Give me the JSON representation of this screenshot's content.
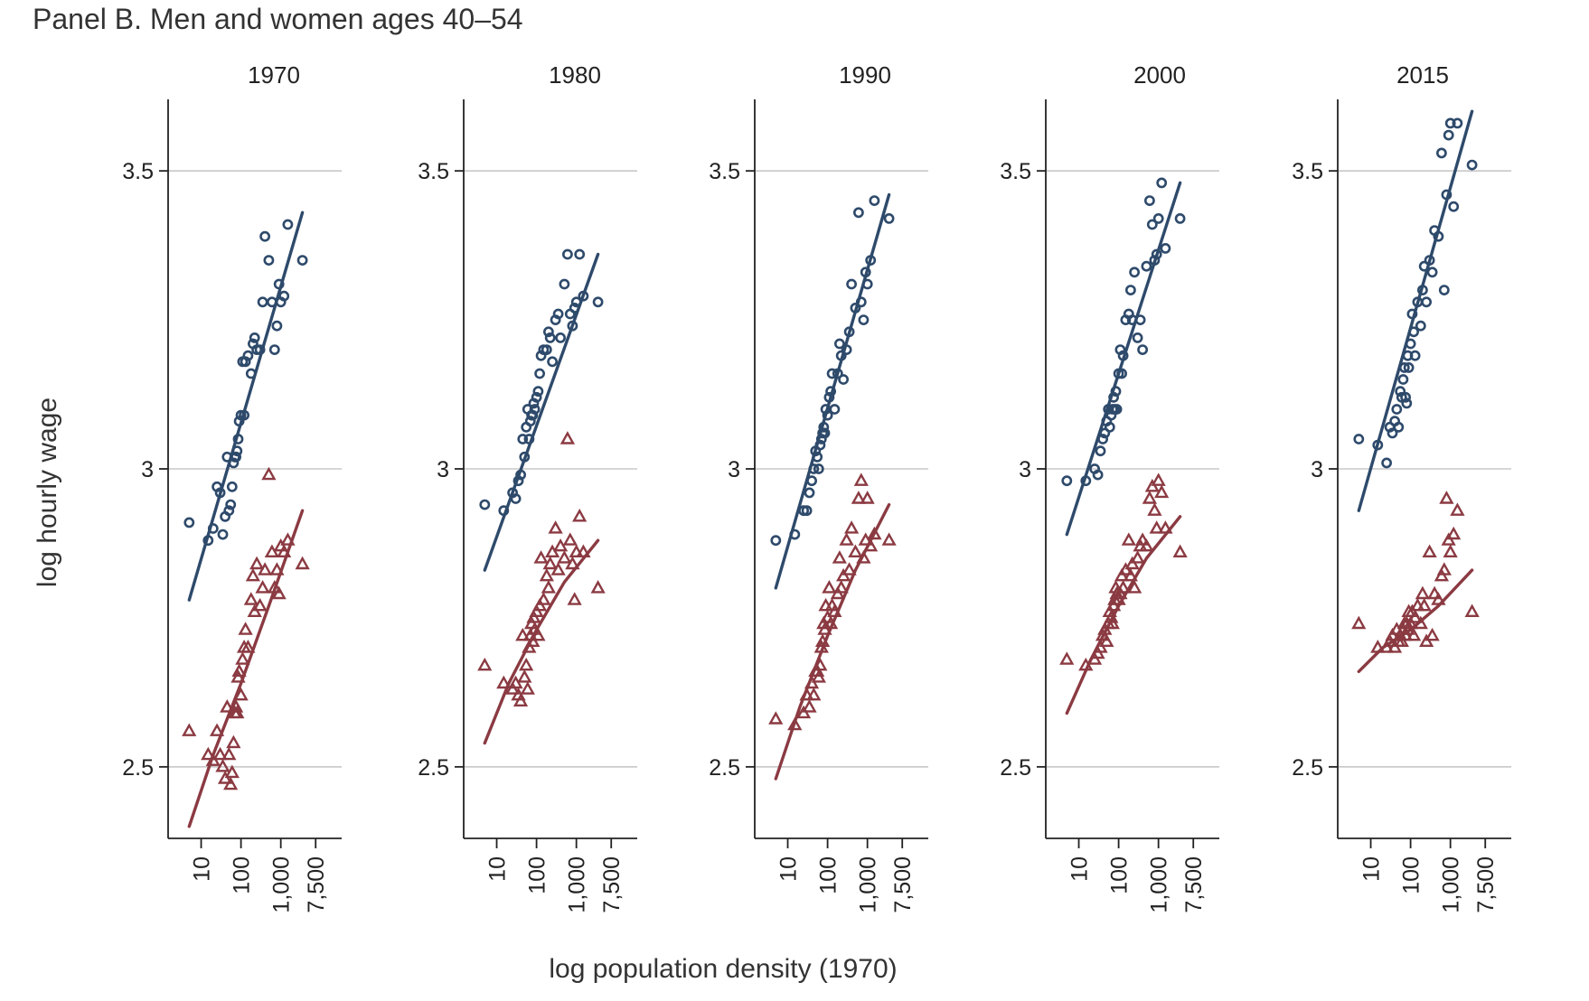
{
  "figure": {
    "panel_title": "Panel B. Men and women ages 40–54",
    "colors": {
      "series_circle": "#2e4a6b",
      "series_triangle": "#8b3a42",
      "grid": "#c8c8c8",
      "axis": "#222222"
    }
  },
  "chart_data": {
    "type": "scatter",
    "title": "Panel B. Men and women ages 40–54",
    "xlabel": "log population density (1970)",
    "ylabel": "log hourly wage",
    "x_scale": "log",
    "x_ticks": [
      10,
      100,
      1000,
      7500
    ],
    "x_tick_labels": [
      "10",
      "100",
      "1,000",
      "7,500"
    ],
    "xlim": [
      2.5,
      20000
    ],
    "y_ticks": [
      2.5,
      3,
      3.5
    ],
    "y_tick_labels": [
      "2.5",
      "3",
      "3.5"
    ],
    "ylim": [
      2.38,
      3.62
    ],
    "grid": "horizontal",
    "legend": "none",
    "facets": [
      {
        "title": "1970",
        "series": [
          {
            "marker": "circle",
            "color": "#2e4a6b",
            "x": [
              5,
              15,
              20,
              25,
              30,
              35,
              40,
              45,
              50,
              55,
              60,
              65,
              70,
              75,
              80,
              85,
              90,
              100,
              110,
              120,
              130,
              150,
              180,
              200,
              220,
              250,
              300,
              350,
              400,
              500,
              600,
              700,
              800,
              900,
              1000,
              1200,
              1500,
              3500
            ],
            "y": [
              2.91,
              2.88,
              2.9,
              2.97,
              2.96,
              2.89,
              2.92,
              3.02,
              2.93,
              2.94,
              2.97,
              3.01,
              3.02,
              3.02,
              3.03,
              3.05,
              3.08,
              3.09,
              3.18,
              3.09,
              3.18,
              3.19,
              3.16,
              3.21,
              3.22,
              3.2,
              3.2,
              3.28,
              3.39,
              3.35,
              3.28,
              3.2,
              3.24,
              3.31,
              3.28,
              3.29,
              3.41,
              3.35
            ]
          },
          {
            "marker": "triangle",
            "color": "#8b3a42",
            "x": [
              5,
              15,
              20,
              25,
              30,
              35,
              40,
              45,
              50,
              55,
              60,
              65,
              70,
              75,
              80,
              85,
              90,
              100,
              110,
              120,
              130,
              150,
              180,
              200,
              220,
              250,
              300,
              350,
              400,
              500,
              600,
              700,
              800,
              900,
              1000,
              1200,
              1500,
              3500
            ],
            "y": [
              2.56,
              2.52,
              2.51,
              2.56,
              2.52,
              2.5,
              2.48,
              2.6,
              2.52,
              2.47,
              2.49,
              2.54,
              2.59,
              2.6,
              2.59,
              2.65,
              2.66,
              2.62,
              2.68,
              2.7,
              2.73,
              2.7,
              2.78,
              2.82,
              2.76,
              2.84,
              2.77,
              2.8,
              2.83,
              2.99,
              2.86,
              2.8,
              2.83,
              2.79,
              2.87,
              2.86,
              2.88,
              2.84
            ]
          }
        ],
        "fit_lines": [
          {
            "color": "#2e4a6b",
            "x": [
              5,
              3500
            ],
            "y": [
              2.78,
              3.43
            ]
          },
          {
            "color": "#8b3a42",
            "x": [
              5,
              20,
              100,
              500,
              3500
            ],
            "y": [
              2.4,
              2.52,
              2.64,
              2.77,
              2.93
            ]
          }
        ]
      },
      {
        "title": "1980",
        "series": [
          {
            "marker": "circle",
            "color": "#2e4a6b",
            "x": [
              5,
              15,
              25,
              30,
              35,
              40,
              45,
              50,
              55,
              60,
              65,
              70,
              75,
              80,
              85,
              90,
              100,
              110,
              120,
              130,
              150,
              180,
              200,
              220,
              250,
              300,
              350,
              400,
              500,
              600,
              700,
              800,
              900,
              1000,
              1200,
              1500,
              3500
            ],
            "y": [
              2.94,
              2.93,
              2.96,
              2.95,
              2.98,
              2.99,
              3.05,
              3.02,
              3.07,
              3.1,
              3.05,
              3.08,
              3.09,
              3.09,
              3.11,
              3.1,
              3.12,
              3.13,
              3.16,
              3.19,
              3.2,
              3.2,
              3.23,
              3.22,
              3.18,
              3.25,
              3.26,
              3.22,
              3.31,
              3.36,
              3.26,
              3.24,
              3.27,
              3.28,
              3.36,
              3.29,
              3.28
            ]
          },
          {
            "marker": "triangle",
            "color": "#8b3a42",
            "x": [
              5,
              15,
              25,
              30,
              35,
              40,
              45,
              50,
              55,
              60,
              65,
              70,
              75,
              80,
              85,
              90,
              100,
              110,
              120,
              130,
              150,
              180,
              200,
              220,
              250,
              300,
              350,
              400,
              500,
              600,
              700,
              800,
              900,
              1000,
              1200,
              1500,
              3500
            ],
            "y": [
              2.67,
              2.64,
              2.63,
              2.64,
              2.62,
              2.61,
              2.72,
              2.65,
              2.67,
              2.63,
              2.7,
              2.72,
              2.74,
              2.71,
              2.75,
              2.73,
              2.76,
              2.72,
              2.77,
              2.85,
              2.78,
              2.82,
              2.8,
              2.84,
              2.86,
              2.9,
              2.83,
              2.87,
              2.85,
              3.05,
              2.88,
              2.84,
              2.78,
              2.86,
              2.92,
              2.86,
              2.8
            ]
          }
        ],
        "fit_lines": [
          {
            "color": "#2e4a6b",
            "x": [
              5,
              3500
            ],
            "y": [
              2.83,
              3.36
            ]
          },
          {
            "color": "#8b3a42",
            "x": [
              5,
              20,
              100,
              500,
              3500
            ],
            "y": [
              2.54,
              2.64,
              2.73,
              2.81,
              2.88
            ]
          }
        ]
      },
      {
        "title": "1990",
        "series": [
          {
            "marker": "circle",
            "color": "#2e4a6b",
            "x": [
              5,
              15,
              25,
              30,
              35,
              40,
              45,
              50,
              55,
              60,
              65,
              70,
              75,
              80,
              85,
              90,
              100,
              110,
              120,
              130,
              150,
              180,
              200,
              220,
              250,
              300,
              350,
              400,
              500,
              600,
              700,
              800,
              900,
              1000,
              1200,
              1500,
              3500
            ],
            "y": [
              2.88,
              2.89,
              2.93,
              2.93,
              2.96,
              2.98,
              3.0,
              3.03,
              3.02,
              3.0,
              3.04,
              3.05,
              3.06,
              3.07,
              3.06,
              3.1,
              3.09,
              3.12,
              3.13,
              3.16,
              3.1,
              3.16,
              3.21,
              3.19,
              3.15,
              3.2,
              3.23,
              3.31,
              3.27,
              3.43,
              3.28,
              3.25,
              3.33,
              3.31,
              3.35,
              3.45,
              3.42
            ]
          },
          {
            "marker": "triangle",
            "color": "#8b3a42",
            "x": [
              5,
              15,
              25,
              30,
              35,
              40,
              45,
              50,
              55,
              60,
              65,
              70,
              75,
              80,
              85,
              90,
              100,
              110,
              120,
              130,
              150,
              180,
              200,
              220,
              250,
              300,
              350,
              400,
              500,
              600,
              700,
              800,
              900,
              1000,
              1200,
              1500,
              3500
            ],
            "y": [
              2.58,
              2.57,
              2.59,
              2.62,
              2.6,
              2.64,
              2.62,
              2.66,
              2.66,
              2.65,
              2.67,
              2.7,
              2.71,
              2.74,
              2.73,
              2.77,
              2.75,
              2.8,
              2.74,
              2.77,
              2.76,
              2.79,
              2.85,
              2.8,
              2.82,
              2.88,
              2.83,
              2.9,
              2.86,
              2.95,
              2.98,
              2.85,
              2.88,
              2.95,
              2.87,
              2.89,
              2.88
            ]
          }
        ],
        "fit_lines": [
          {
            "color": "#2e4a6b",
            "x": [
              5,
              3500
            ],
            "y": [
              2.8,
              3.46
            ]
          },
          {
            "color": "#8b3a42",
            "x": [
              5,
              20,
              100,
              500,
              3500
            ],
            "y": [
              2.48,
              2.6,
              2.72,
              2.83,
              2.94
            ]
          }
        ]
      },
      {
        "title": "2000",
        "series": [
          {
            "marker": "circle",
            "color": "#2e4a6b",
            "x": [
              5,
              15,
              25,
              30,
              35,
              40,
              45,
              50,
              55,
              60,
              65,
              70,
              75,
              80,
              85,
              90,
              100,
              110,
              120,
              130,
              150,
              180,
              200,
              220,
              250,
              300,
              350,
              400,
              500,
              600,
              700,
              800,
              900,
              1000,
              1200,
              1500,
              3500
            ],
            "y": [
              2.98,
              2.98,
              3.0,
              2.99,
              3.03,
              3.05,
              3.06,
              3.08,
              3.1,
              3.07,
              3.09,
              3.1,
              3.12,
              3.1,
              3.13,
              3.1,
              3.16,
              3.2,
              3.16,
              3.19,
              3.25,
              3.26,
              3.3,
              3.25,
              3.33,
              3.22,
              3.25,
              3.2,
              3.34,
              3.45,
              3.41,
              3.35,
              3.36,
              3.42,
              3.48,
              3.37,
              3.42
            ]
          },
          {
            "marker": "triangle",
            "color": "#8b3a42",
            "x": [
              5,
              15,
              25,
              30,
              35,
              40,
              45,
              50,
              55,
              60,
              65,
              70,
              75,
              80,
              85,
              90,
              100,
              110,
              120,
              130,
              150,
              180,
              200,
              220,
              250,
              300,
              350,
              400,
              500,
              600,
              700,
              800,
              900,
              1000,
              1200,
              1500,
              3500
            ],
            "y": [
              2.68,
              2.67,
              2.68,
              2.69,
              2.7,
              2.72,
              2.73,
              2.71,
              2.74,
              2.76,
              2.75,
              2.74,
              2.77,
              2.78,
              2.8,
              2.79,
              2.78,
              2.79,
              2.82,
              2.8,
              2.83,
              2.88,
              2.82,
              2.84,
              2.8,
              2.85,
              2.87,
              2.88,
              2.87,
              2.95,
              2.97,
              2.93,
              2.9,
              2.98,
              2.96,
              2.9,
              2.86
            ]
          }
        ],
        "fit_lines": [
          {
            "color": "#2e4a6b",
            "x": [
              5,
              3500
            ],
            "y": [
              2.89,
              3.48
            ]
          },
          {
            "color": "#8b3a42",
            "x": [
              5,
              20,
              100,
              500,
              3500
            ],
            "y": [
              2.59,
              2.68,
              2.77,
              2.85,
              2.92
            ]
          }
        ]
      },
      {
        "title": "2015",
        "series": [
          {
            "marker": "circle",
            "color": "#2e4a6b",
            "x": [
              5,
              15,
              25,
              30,
              35,
              40,
              45,
              50,
              55,
              60,
              65,
              70,
              75,
              80,
              85,
              90,
              100,
              110,
              120,
              130,
              150,
              180,
              200,
              220,
              250,
              300,
              350,
              400,
              500,
              600,
              700,
              800,
              900,
              1000,
              1200,
              1500,
              3500
            ],
            "y": [
              3.05,
              3.04,
              3.01,
              3.07,
              3.06,
              3.08,
              3.1,
              3.07,
              3.13,
              3.12,
              3.15,
              3.17,
              3.12,
              3.11,
              3.19,
              3.17,
              3.21,
              3.26,
              3.23,
              3.19,
              3.28,
              3.24,
              3.3,
              3.34,
              3.28,
              3.35,
              3.33,
              3.4,
              3.39,
              3.53,
              3.3,
              3.46,
              3.56,
              3.58,
              3.44,
              3.58,
              3.51
            ]
          },
          {
            "marker": "triangle",
            "color": "#8b3a42",
            "x": [
              5,
              15,
              25,
              30,
              35,
              40,
              45,
              50,
              55,
              60,
              65,
              70,
              75,
              80,
              85,
              90,
              100,
              110,
              120,
              130,
              150,
              180,
              200,
              220,
              250,
              300,
              350,
              400,
              500,
              600,
              700,
              800,
              900,
              1000,
              1200,
              1500,
              3500
            ],
            "y": [
              2.74,
              2.7,
              2.7,
              2.71,
              2.72,
              2.7,
              2.73,
              2.71,
              2.72,
              2.71,
              2.73,
              2.74,
              2.72,
              2.74,
              2.73,
              2.76,
              2.74,
              2.76,
              2.72,
              2.75,
              2.77,
              2.74,
              2.79,
              2.77,
              2.71,
              2.86,
              2.72,
              2.79,
              2.78,
              2.82,
              2.83,
              2.95,
              2.88,
              2.86,
              2.89,
              2.93,
              2.76
            ]
          }
        ],
        "fit_lines": [
          {
            "color": "#2e4a6b",
            "x": [
              5,
              3500
            ],
            "y": [
              2.93,
              3.6
            ]
          },
          {
            "color": "#8b3a42",
            "x": [
              5,
              20,
              100,
              500,
              3500
            ],
            "y": [
              2.66,
              2.7,
              2.73,
              2.77,
              2.83
            ]
          }
        ]
      }
    ]
  }
}
